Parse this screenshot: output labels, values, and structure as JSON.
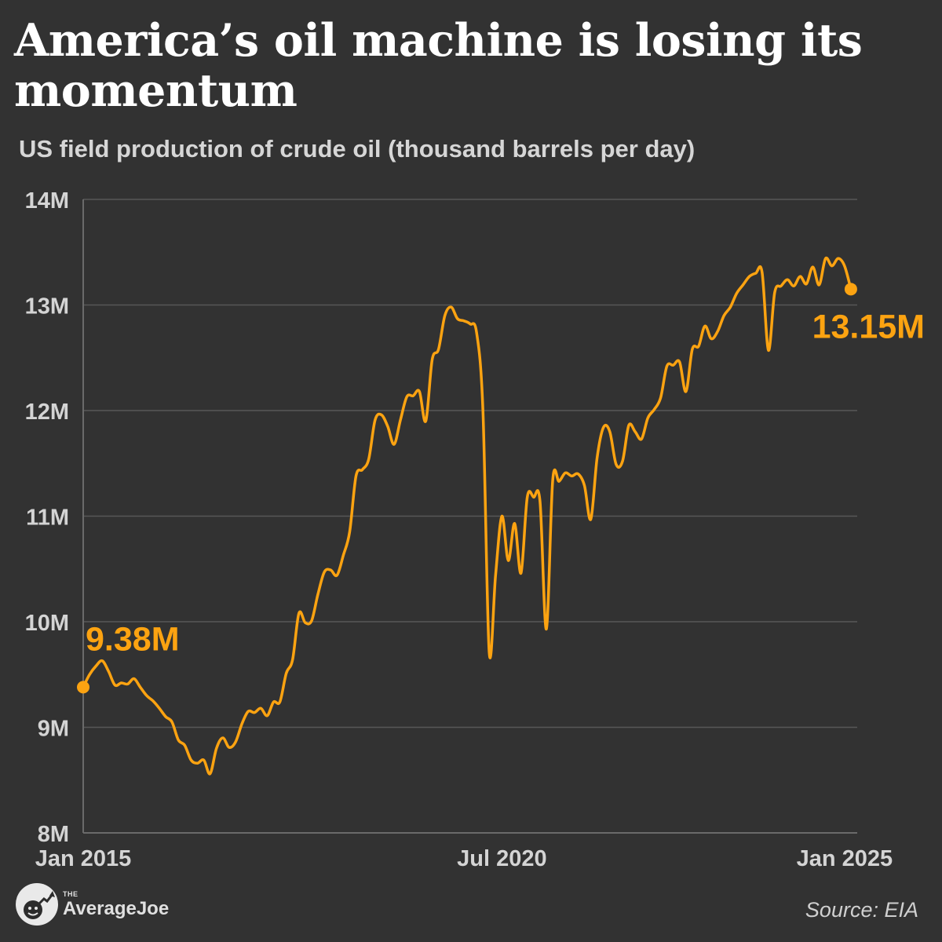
{
  "header": {
    "title": "America’s oil machine is losing its momentum",
    "subtitle": "US field production of crude oil (thousand barrels per day)"
  },
  "chart_data": {
    "type": "line",
    "title": "America’s oil machine is losing its momentum",
    "subtitle": "US field production of crude oil (thousand barrels per day)",
    "xlabel": "",
    "ylabel": "",
    "ylim": [
      8000,
      14000
    ],
    "y_ticks": [
      {
        "value": 14000,
        "label": "14M"
      },
      {
        "value": 13000,
        "label": "13M"
      },
      {
        "value": 12000,
        "label": "12M"
      },
      {
        "value": 11000,
        "label": "11M"
      },
      {
        "value": 10000,
        "label": "10M"
      },
      {
        "value": 9000,
        "label": "9M"
      },
      {
        "value": 8000,
        "label": "8M"
      }
    ],
    "x_ticks": [
      {
        "date": "2015-01",
        "label": "Jan 2015"
      },
      {
        "date": "2020-07",
        "label": "Jul 2020"
      },
      {
        "date": "2025-01",
        "label": "Jan 2025"
      }
    ],
    "xlim": [
      "2015-01",
      "2025-03"
    ],
    "grid": true,
    "line_color": "#fca311",
    "series": [
      {
        "points": [
          [
            "2015-01",
            9380
          ],
          [
            "2015-02",
            9500
          ],
          [
            "2015-03",
            9580
          ],
          [
            "2015-04",
            9630
          ],
          [
            "2015-05",
            9530
          ],
          [
            "2015-06",
            9400
          ],
          [
            "2015-07",
            9420
          ],
          [
            "2015-08",
            9410
          ],
          [
            "2015-09",
            9460
          ],
          [
            "2015-10",
            9380
          ],
          [
            "2015-11",
            9300
          ],
          [
            "2015-12",
            9250
          ],
          [
            "2016-01",
            9180
          ],
          [
            "2016-02",
            9100
          ],
          [
            "2016-03",
            9050
          ],
          [
            "2016-04",
            8880
          ],
          [
            "2016-05",
            8830
          ],
          [
            "2016-06",
            8690
          ],
          [
            "2016-07",
            8660
          ],
          [
            "2016-08",
            8690
          ],
          [
            "2016-09",
            8560
          ],
          [
            "2016-10",
            8800
          ],
          [
            "2016-11",
            8900
          ],
          [
            "2016-12",
            8810
          ],
          [
            "2017-01",
            8860
          ],
          [
            "2017-02",
            9030
          ],
          [
            "2017-03",
            9150
          ],
          [
            "2017-04",
            9140
          ],
          [
            "2017-05",
            9180
          ],
          [
            "2017-06",
            9110
          ],
          [
            "2017-07",
            9240
          ],
          [
            "2017-08",
            9240
          ],
          [
            "2017-09",
            9510
          ],
          [
            "2017-10",
            9640
          ],
          [
            "2017-11",
            10080
          ],
          [
            "2017-12",
            9990
          ],
          [
            "2018-01",
            10010
          ],
          [
            "2018-02",
            10260
          ],
          [
            "2018-03",
            10470
          ],
          [
            "2018-04",
            10490
          ],
          [
            "2018-05",
            10440
          ],
          [
            "2018-06",
            10630
          ],
          [
            "2018-07",
            10850
          ],
          [
            "2018-08",
            11380
          ],
          [
            "2018-09",
            11440
          ],
          [
            "2018-10",
            11540
          ],
          [
            "2018-11",
            11910
          ],
          [
            "2018-12",
            11960
          ],
          [
            "2019-01",
            11850
          ],
          [
            "2019-02",
            11680
          ],
          [
            "2019-03",
            11910
          ],
          [
            "2019-04",
            12130
          ],
          [
            "2019-05",
            12140
          ],
          [
            "2019-06",
            12180
          ],
          [
            "2019-07",
            11900
          ],
          [
            "2019-08",
            12480
          ],
          [
            "2019-09",
            12580
          ],
          [
            "2019-10",
            12900
          ],
          [
            "2019-11",
            12980
          ],
          [
            "2019-12",
            12870
          ],
          [
            "2020-01",
            12850
          ],
          [
            "2020-02",
            12820
          ],
          [
            "2020-03",
            12740
          ],
          [
            "2020-04",
            12000
          ],
          [
            "2020-05",
            9710
          ],
          [
            "2020-06",
            10440
          ],
          [
            "2020-07",
            11000
          ],
          [
            "2020-08",
            10580
          ],
          [
            "2020-09",
            10930
          ],
          [
            "2020-10",
            10460
          ],
          [
            "2020-11",
            11180
          ],
          [
            "2020-12",
            11180
          ],
          [
            "2021-01",
            11140
          ],
          [
            "2021-02",
            9930
          ],
          [
            "2021-03",
            11340
          ],
          [
            "2021-04",
            11330
          ],
          [
            "2021-05",
            11410
          ],
          [
            "2021-06",
            11380
          ],
          [
            "2021-07",
            11400
          ],
          [
            "2021-08",
            11290
          ],
          [
            "2021-09",
            10970
          ],
          [
            "2021-10",
            11550
          ],
          [
            "2021-11",
            11840
          ],
          [
            "2021-12",
            11800
          ],
          [
            "2022-01",
            11490
          ],
          [
            "2022-02",
            11520
          ],
          [
            "2022-03",
            11860
          ],
          [
            "2022-04",
            11800
          ],
          [
            "2022-05",
            11730
          ],
          [
            "2022-06",
            11930
          ],
          [
            "2022-07",
            12010
          ],
          [
            "2022-08",
            12120
          ],
          [
            "2022-09",
            12420
          ],
          [
            "2022-10",
            12430
          ],
          [
            "2022-11",
            12460
          ],
          [
            "2022-12",
            12180
          ],
          [
            "2023-01",
            12580
          ],
          [
            "2023-02",
            12610
          ],
          [
            "2023-03",
            12800
          ],
          [
            "2023-04",
            12680
          ],
          [
            "2023-05",
            12750
          ],
          [
            "2023-06",
            12900
          ],
          [
            "2023-07",
            12980
          ],
          [
            "2023-08",
            13110
          ],
          [
            "2023-09",
            13190
          ],
          [
            "2023-10",
            13270
          ],
          [
            "2023-11",
            13300
          ],
          [
            "2023-12",
            13310
          ],
          [
            "2024-01",
            12570
          ],
          [
            "2024-02",
            13120
          ],
          [
            "2024-03",
            13180
          ],
          [
            "2024-04",
            13240
          ],
          [
            "2024-05",
            13180
          ],
          [
            "2024-06",
            13270
          ],
          [
            "2024-07",
            13200
          ],
          [
            "2024-08",
            13360
          ],
          [
            "2024-09",
            13190
          ],
          [
            "2024-10",
            13440
          ],
          [
            "2024-11",
            13370
          ],
          [
            "2024-12",
            13440
          ],
          [
            "2025-01",
            13370
          ],
          [
            "2025-02",
            13150
          ]
        ]
      }
    ],
    "annotations": [
      {
        "date": "2015-01",
        "value": 9380,
        "label": "9.38M"
      },
      {
        "date": "2025-02",
        "value": 13150,
        "label": "13.15M"
      }
    ]
  },
  "footer": {
    "logo_small": "THE",
    "logo_big": "AverageJoe",
    "logo_icon": "average-joe-logo-icon",
    "source": "Source: EIA"
  }
}
